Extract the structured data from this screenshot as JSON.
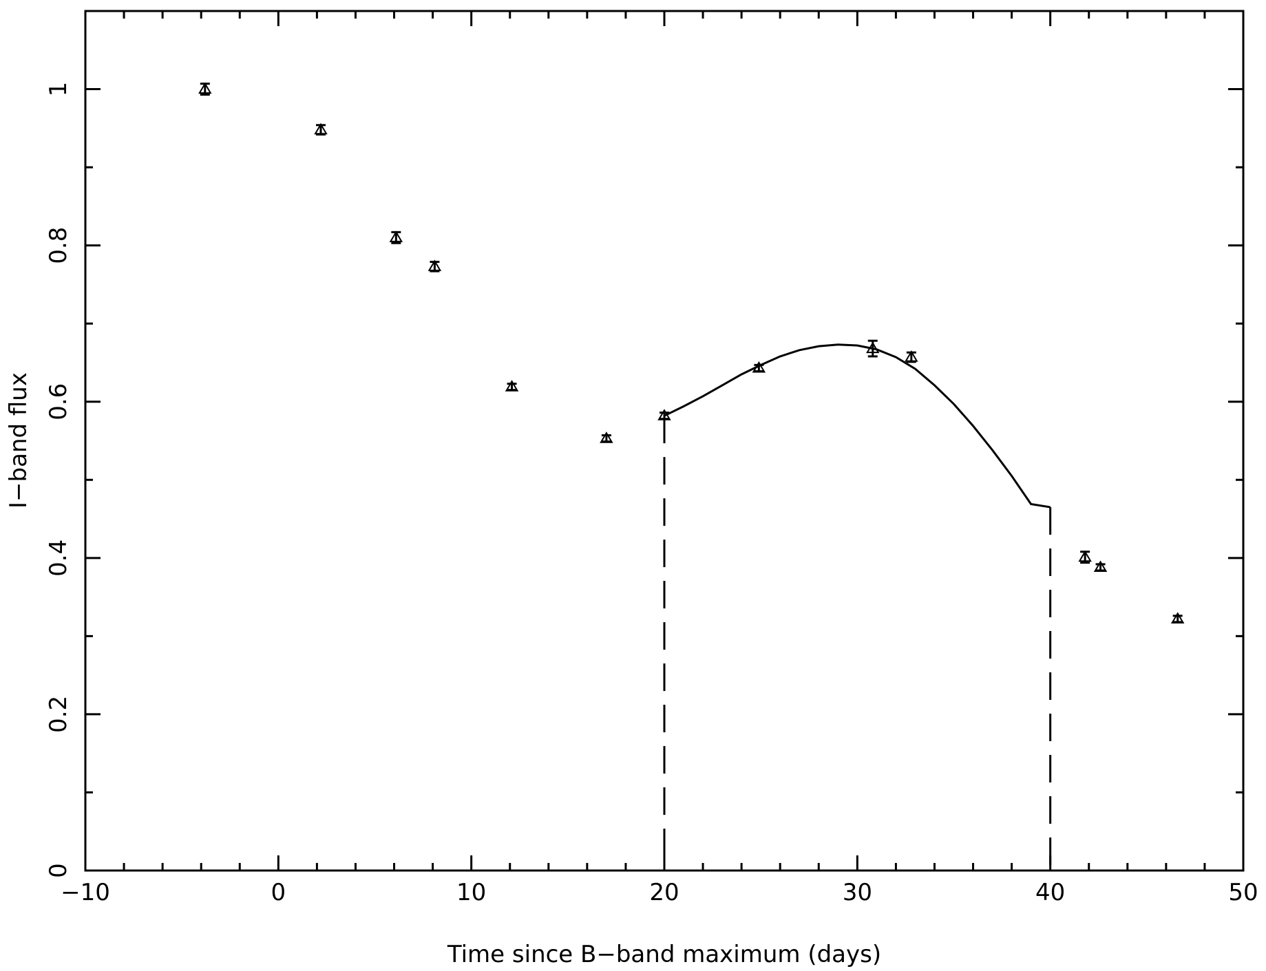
{
  "chart_data": {
    "type": "scatter",
    "title": "",
    "xlabel": "Time since B−band maximum (days)",
    "ylabel": "I−band flux",
    "xlim": [
      -10,
      50
    ],
    "ylim": [
      0,
      1.1
    ],
    "x_ticks": [
      -10,
      0,
      10,
      20,
      30,
      40,
      50
    ],
    "x_tick_labels": [
      "−10",
      "0",
      "10",
      "20",
      "30",
      "40",
      "50"
    ],
    "y_ticks": [
      0,
      0.2,
      0.4,
      0.6,
      0.8,
      1
    ],
    "y_tick_labels": [
      "0",
      "0.2",
      "0.4",
      "0.6",
      "0.8",
      "1"
    ],
    "x_minor_step": 2,
    "y_minor_step": 0.1,
    "grid": false,
    "marker": "triangle-open",
    "points": [
      {
        "x": -3.8,
        "y": 1.0,
        "err": 0.007
      },
      {
        "x": 2.2,
        "y": 0.948,
        "err": 0.006
      },
      {
        "x": 6.1,
        "y": 0.81,
        "err": 0.007
      },
      {
        "x": 8.1,
        "y": 0.773,
        "err": 0.006
      },
      {
        "x": 12.1,
        "y": 0.619,
        "err": 0.004
      },
      {
        "x": 17.0,
        "y": 0.553,
        "err": 0.004
      },
      {
        "x": 20.0,
        "y": 0.582,
        "err": 0.004
      },
      {
        "x": 24.9,
        "y": 0.643,
        "err": 0.004
      },
      {
        "x": 30.8,
        "y": 0.668,
        "err": 0.01
      },
      {
        "x": 32.8,
        "y": 0.657,
        "err": 0.006
      },
      {
        "x": 41.8,
        "y": 0.401,
        "err": 0.007
      },
      {
        "x": 42.6,
        "y": 0.388,
        "err": 0.004
      },
      {
        "x": 46.6,
        "y": 0.322,
        "err": 0.004
      }
    ],
    "fit_curve": {
      "x": [
        20,
        21,
        22,
        23,
        24,
        25,
        26,
        27,
        28,
        29,
        30,
        31,
        32,
        33,
        34,
        35,
        36,
        37,
        38,
        39,
        40
      ],
      "y": [
        0.582,
        0.594,
        0.607,
        0.621,
        0.635,
        0.647,
        0.658,
        0.666,
        0.671,
        0.673,
        0.672,
        0.667,
        0.657,
        0.642,
        0.621,
        0.597,
        0.569,
        0.538,
        0.505,
        0.469,
        0.465
      ]
    },
    "boundary_lines": [
      {
        "x": 20,
        "y_top": 0.582,
        "style": "dashed"
      },
      {
        "x": 40,
        "y_top": 0.465,
        "style": "dashed"
      }
    ]
  }
}
